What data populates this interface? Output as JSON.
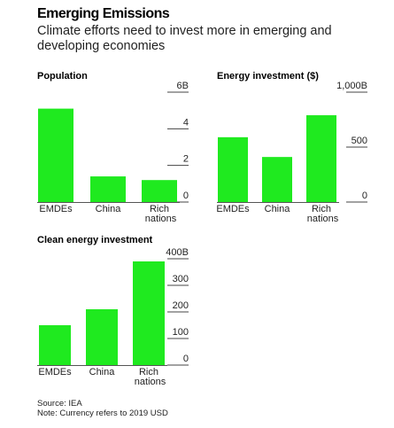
{
  "title": "Emerging Emissions",
  "subtitle": "Climate efforts need to invest more in emerging and developing economies",
  "chart_data": [
    {
      "type": "bar",
      "title": "Population",
      "categories": [
        "EMDEs",
        "China",
        "Rich nations"
      ],
      "values": [
        5.1,
        1.4,
        1.2
      ],
      "color": "#1fea1f",
      "ylim": [
        0,
        6
      ],
      "yticks": [
        0,
        2,
        4,
        {
          "value": 6,
          "label": "6B"
        }
      ]
    },
    {
      "type": "bar",
      "title": "Energy investment ($)",
      "categories": [
        "EMDEs",
        "China",
        "Rich nations"
      ],
      "values": [
        590,
        410,
        790
      ],
      "color": "#1fea1f",
      "ylim": [
        0,
        1000
      ],
      "yticks": [
        0,
        500,
        {
          "value": 1000,
          "label": "1,000B"
        }
      ]
    },
    {
      "type": "bar",
      "title": "Clean energy investment",
      "categories": [
        "EMDEs",
        "China",
        "Rich nations"
      ],
      "values": [
        150,
        210,
        390
      ],
      "color": "#1fea1f",
      "ylim": [
        0,
        400
      ],
      "yticks": [
        0,
        100,
        200,
        300,
        {
          "value": 400,
          "label": "400B"
        }
      ]
    }
  ],
  "source": "Source: IEA",
  "note": "Note: Currency refers to 2019 USD"
}
